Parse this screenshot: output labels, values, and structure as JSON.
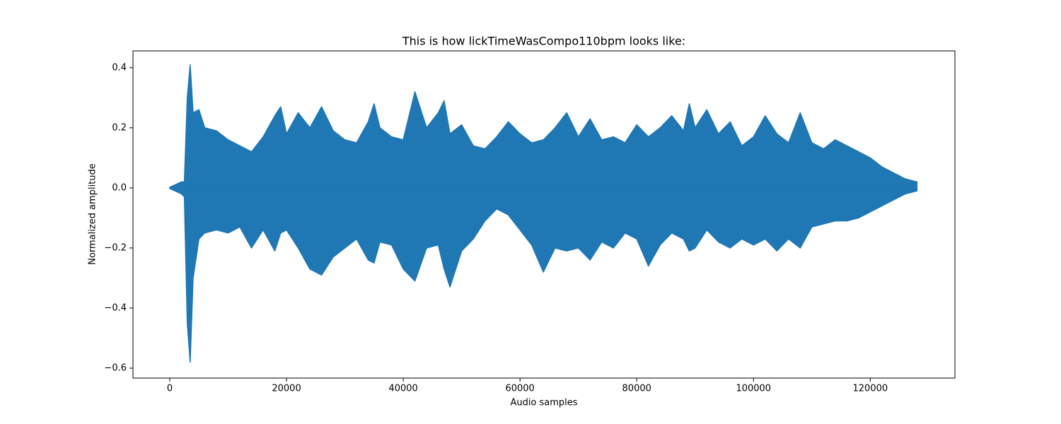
{
  "chart_data": {
    "type": "area",
    "title": "This is how lickTimeWasCompo110bpm looks like:",
    "x_label": "Audio samples",
    "y_label": "Normalized amplitude",
    "x": [
      0,
      2000,
      2500,
      3000,
      3500,
      4000,
      5000,
      6000,
      8000,
      10000,
      12000,
      14000,
      16000,
      18000,
      19000,
      20000,
      22000,
      24000,
      26000,
      28000,
      30000,
      32000,
      34000,
      35000,
      36000,
      38000,
      40000,
      42000,
      44000,
      46000,
      47000,
      48000,
      50000,
      52000,
      54000,
      56000,
      58000,
      60000,
      62000,
      64000,
      66000,
      68000,
      70000,
      72000,
      74000,
      76000,
      78000,
      80000,
      82000,
      84000,
      86000,
      88000,
      89000,
      90000,
      92000,
      94000,
      96000,
      98000,
      100000,
      102000,
      104000,
      106000,
      108000,
      110000,
      112000,
      114000,
      116000,
      118000,
      120000,
      122000,
      124000,
      126000,
      128000
    ],
    "series": [
      {
        "color": "#1f77b4",
        "values": [
          0.002,
          0.02,
          0.02,
          0.3,
          0.41,
          0.25,
          0.26,
          0.2,
          0.19,
          0.16,
          0.14,
          0.12,
          0.17,
          0.24,
          0.27,
          0.18,
          0.25,
          0.2,
          0.27,
          0.19,
          0.16,
          0.15,
          0.22,
          0.28,
          0.2,
          0.17,
          0.16,
          0.32,
          0.2,
          0.25,
          0.29,
          0.18,
          0.21,
          0.14,
          0.13,
          0.17,
          0.22,
          0.18,
          0.15,
          0.16,
          0.2,
          0.25,
          0.17,
          0.23,
          0.16,
          0.17,
          0.15,
          0.21,
          0.17,
          0.2,
          0.24,
          0.19,
          0.28,
          0.2,
          0.26,
          0.18,
          0.22,
          0.14,
          0.17,
          0.24,
          0.18,
          0.15,
          0.25,
          0.15,
          0.13,
          0.16,
          0.14,
          0.12,
          0.1,
          0.07,
          0.05,
          0.03,
          0.02
        ]
      },
      {
        "color": "#1f77b4",
        "values": [
          -0.002,
          -0.02,
          -0.03,
          -0.45,
          -0.58,
          -0.3,
          -0.17,
          -0.15,
          -0.14,
          -0.15,
          -0.13,
          -0.2,
          -0.14,
          -0.21,
          -0.15,
          -0.14,
          -0.2,
          -0.27,
          -0.29,
          -0.23,
          -0.2,
          -0.17,
          -0.24,
          -0.25,
          -0.18,
          -0.19,
          -0.27,
          -0.31,
          -0.2,
          -0.19,
          -0.27,
          -0.33,
          -0.21,
          -0.17,
          -0.11,
          -0.07,
          -0.09,
          -0.14,
          -0.19,
          -0.28,
          -0.2,
          -0.21,
          -0.2,
          -0.24,
          -0.18,
          -0.2,
          -0.15,
          -0.17,
          -0.26,
          -0.19,
          -0.15,
          -0.17,
          -0.21,
          -0.2,
          -0.14,
          -0.18,
          -0.2,
          -0.17,
          -0.19,
          -0.17,
          -0.21,
          -0.17,
          -0.2,
          -0.13,
          -0.12,
          -0.11,
          -0.11,
          -0.1,
          -0.08,
          -0.06,
          -0.04,
          -0.02,
          -0.01
        ]
      }
    ],
    "xlim": [
      -6300,
      134500
    ],
    "ylim": [
      -0.633,
      0.456
    ],
    "xticks": [
      0,
      20000,
      40000,
      60000,
      80000,
      100000,
      120000
    ],
    "yticks": [
      {
        "value": -0.6,
        "label": "−0.6"
      },
      {
        "value": -0.4,
        "label": "−0.4"
      },
      {
        "value": -0.2,
        "label": "−0.2"
      },
      {
        "value": 0,
        "label": "0.0"
      },
      0.2,
      0.4
    ],
    "grid": false
  }
}
